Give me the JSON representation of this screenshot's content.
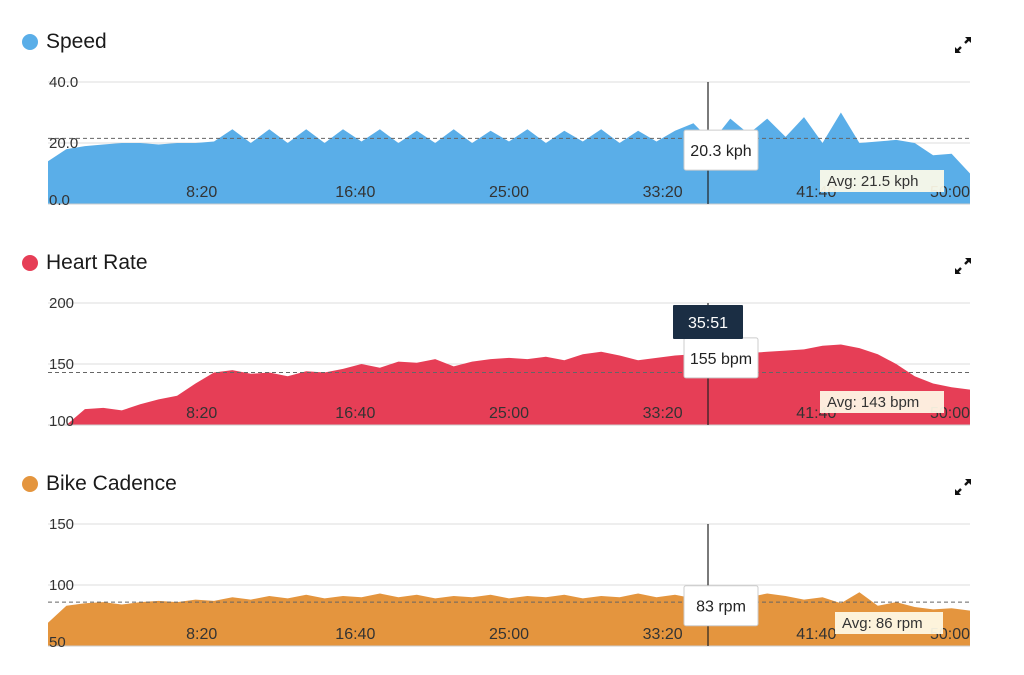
{
  "panels": [
    {
      "title": "Speed",
      "color": "#5aaee8",
      "avg_label": "Avg: 21.5 kph",
      "avg_value": 21.5,
      "tooltip": "20.3 kph",
      "expand_icon": "expand-arrows-icon"
    },
    {
      "title": "Heart Rate",
      "color": "#e63e56",
      "avg_label": "Avg: 143 bpm",
      "avg_value": 143,
      "tooltip": "155 bpm",
      "expand_icon": "expand-arrows-icon"
    },
    {
      "title": "Bike Cadence",
      "color": "#e4953e",
      "avg_label": "Avg: 86 rpm",
      "avg_value": 86,
      "tooltip": "83 rpm",
      "expand_icon": "expand-arrows-icon"
    }
  ],
  "cursor_time": "35:51",
  "chart_data": [
    {
      "type": "area",
      "title": "Speed",
      "x_unit": "seconds",
      "x_ticks": [
        "8:20",
        "16:40",
        "25:00",
        "33:20",
        "41:40",
        "50:00"
      ],
      "y_ticks": [
        "0.0",
        "20.0",
        "40.0"
      ],
      "ylim": [
        0,
        40
      ],
      "xlim": [
        0,
        3000
      ],
      "avg": 21.5,
      "cursor_x": 2151,
      "cursor_value": 20.3,
      "x": [
        0,
        60,
        120,
        180,
        240,
        300,
        360,
        420,
        480,
        540,
        600,
        660,
        720,
        780,
        840,
        900,
        960,
        1020,
        1080,
        1140,
        1200,
        1260,
        1320,
        1380,
        1440,
        1500,
        1560,
        1620,
        1680,
        1740,
        1800,
        1860,
        1920,
        1980,
        2040,
        2100,
        2160,
        2220,
        2280,
        2340,
        2400,
        2460,
        2520,
        2580,
        2640,
        2700,
        2760,
        2820,
        2880,
        2940,
        3000
      ],
      "y": [
        14,
        18,
        19,
        19.5,
        20,
        20,
        19.5,
        20,
        20,
        20.5,
        24.5,
        20,
        24.5,
        20,
        24.5,
        20,
        24.5,
        20.5,
        24.5,
        20,
        24,
        20,
        24.5,
        20,
        24,
        20.5,
        24.5,
        20,
        24,
        20.5,
        24.5,
        20,
        24,
        20.5,
        24,
        26.5,
        20.3,
        28,
        23,
        28,
        22,
        28.5,
        20,
        30,
        20,
        20.5,
        21,
        20,
        16,
        16.5,
        10
      ]
    },
    {
      "type": "area",
      "title": "Heart Rate",
      "x_unit": "seconds",
      "x_ticks": [
        "8:20",
        "16:40",
        "25:00",
        "33:20",
        "41:40",
        "50:00"
      ],
      "y_ticks": [
        "100",
        "150",
        "200"
      ],
      "ylim": [
        100,
        200
      ],
      "xlim": [
        0,
        3000
      ],
      "avg": 143,
      "cursor_x": 2151,
      "cursor_value": 155,
      "x": [
        0,
        60,
        120,
        180,
        240,
        300,
        360,
        420,
        480,
        540,
        600,
        660,
        720,
        780,
        840,
        900,
        960,
        1020,
        1080,
        1140,
        1200,
        1260,
        1320,
        1380,
        1440,
        1500,
        1560,
        1620,
        1680,
        1740,
        1800,
        1860,
        1920,
        1980,
        2040,
        2100,
        2160,
        2220,
        2280,
        2340,
        2400,
        2460,
        2520,
        2580,
        2640,
        2700,
        2760,
        2820,
        2880,
        2940,
        3000
      ],
      "y": [
        100,
        100,
        113,
        114,
        112,
        117,
        121,
        124,
        134,
        143,
        145,
        142,
        143,
        140,
        144,
        143,
        146,
        150,
        147,
        152,
        151,
        154,
        148,
        152,
        154,
        155,
        154,
        156,
        153,
        158,
        160,
        157,
        153,
        155,
        157,
        158,
        155,
        157,
        159,
        160,
        161,
        162,
        165,
        166,
        163,
        158,
        150,
        140,
        134,
        131,
        129
      ]
    },
    {
      "type": "area",
      "title": "Bike Cadence",
      "x_unit": "seconds",
      "x_ticks": [
        "8:20",
        "16:40",
        "25:00",
        "33:20",
        "41:40",
        "50:00"
      ],
      "y_ticks": [
        "50",
        "100",
        "150"
      ],
      "ylim": [
        50,
        150
      ],
      "xlim": [
        0,
        3000
      ],
      "avg": 86,
      "cursor_x": 2151,
      "cursor_value": 83,
      "x": [
        0,
        60,
        120,
        180,
        240,
        300,
        360,
        420,
        480,
        540,
        600,
        660,
        720,
        780,
        840,
        900,
        960,
        1020,
        1080,
        1140,
        1200,
        1260,
        1320,
        1380,
        1440,
        1500,
        1560,
        1620,
        1680,
        1740,
        1800,
        1860,
        1920,
        1980,
        2040,
        2100,
        2160,
        2220,
        2280,
        2340,
        2400,
        2460,
        2520,
        2580,
        2640,
        2700,
        2760,
        2820,
        2880,
        2940,
        3000
      ],
      "y": [
        69,
        83,
        85,
        86,
        84,
        86,
        87,
        86,
        88,
        87,
        90,
        88,
        91,
        89,
        92,
        89,
        91,
        90,
        93,
        90,
        92,
        89,
        91,
        90,
        92,
        89,
        91,
        90,
        92,
        89,
        91,
        90,
        93,
        90,
        92,
        89,
        83,
        91,
        90,
        93,
        91,
        88,
        90,
        85,
        94,
        83,
        86,
        82,
        80,
        81,
        79
      ]
    }
  ]
}
